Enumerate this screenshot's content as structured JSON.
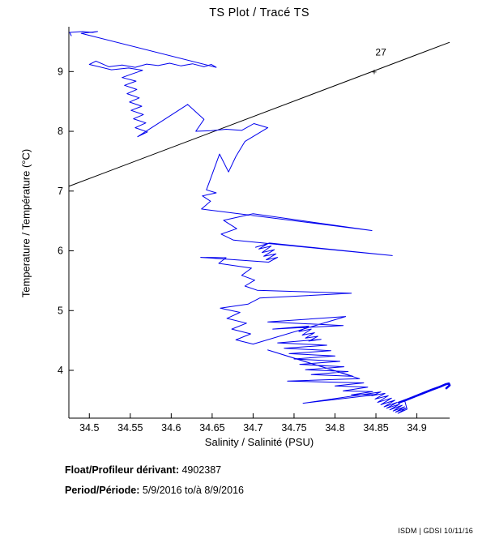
{
  "figure": {
    "title": "TS Plot / Tracé TS",
    "footer": {
      "float_label": "Float/Profileur dérivant:",
      "float_value": " 4902387",
      "period_label": "Period/Période:",
      "period_value": " 5/9/2016  to/à  8/9/2016"
    },
    "stamp": "ISDM | GDSI  10/11/16"
  },
  "chart_data": {
    "type": "line",
    "title": "TS Plot / Tracé TS",
    "xlabel": "Salinity / Salinité (PSU)",
    "ylabel": "Temperature / Température (°C)",
    "xlim": [
      34.475,
      34.94
    ],
    "ylim": [
      3.2,
      9.75
    ],
    "grid": false,
    "box": false,
    "xticks": [
      34.5,
      34.55,
      34.6,
      34.65,
      34.7,
      34.75,
      34.8,
      34.85,
      34.9
    ],
    "xtick_labels": [
      "34.5",
      "34.55",
      "34.6",
      "34.65",
      "34.7",
      "34.75",
      "34.8",
      "34.85",
      "34.9"
    ],
    "yticks": [
      4,
      5,
      6,
      7,
      8,
      9
    ],
    "ytick_labels": [
      "4",
      "5",
      "6",
      "7",
      "8",
      "9"
    ],
    "line_color": "#0000EE",
    "isopycnal": {
      "name": "sigma-t-27-contour",
      "color": "#000000",
      "label": "27",
      "marker": "+",
      "x": [
        34.475,
        34.94
      ],
      "y": [
        7.08,
        9.49
      ],
      "label_pos": [
        34.856,
        9.27
      ],
      "marker_pos": [
        34.848,
        9.0
      ]
    },
    "series": [
      {
        "name": "ts_curve",
        "width": 1,
        "points": [
          [
            34.478,
            9.6
          ],
          [
            34.476,
            9.655
          ],
          [
            34.492,
            9.67
          ],
          [
            34.504,
            9.655
          ],
          [
            34.51,
            9.67
          ],
          [
            34.49,
            9.64
          ],
          [
            34.655,
            9.07
          ],
          [
            34.649,
            9.12
          ],
          [
            34.64,
            9.08
          ],
          [
            34.626,
            9.13
          ],
          [
            34.612,
            9.095
          ],
          [
            34.598,
            9.14
          ],
          [
            34.584,
            9.1
          ],
          [
            34.57,
            9.125
          ],
          [
            34.556,
            9.07
          ],
          [
            34.54,
            9.11
          ],
          [
            34.524,
            9.08
          ],
          [
            34.508,
            9.175
          ],
          [
            34.5,
            9.12
          ],
          [
            34.527,
            9.03
          ],
          [
            34.548,
            9.06
          ],
          [
            34.565,
            9.02
          ],
          [
            34.552,
            8.96
          ],
          [
            34.54,
            8.9
          ],
          [
            34.557,
            8.84
          ],
          [
            34.543,
            8.77
          ],
          [
            34.558,
            8.7
          ],
          [
            34.546,
            8.63
          ],
          [
            34.561,
            8.56
          ],
          [
            34.549,
            8.49
          ],
          [
            34.564,
            8.42
          ],
          [
            34.551,
            8.35
          ],
          [
            34.566,
            8.28
          ],
          [
            34.554,
            8.21
          ],
          [
            34.569,
            8.14
          ],
          [
            34.556,
            8.06
          ],
          [
            34.571,
            7.99
          ],
          [
            34.559,
            7.91
          ],
          [
            34.62,
            8.45
          ],
          [
            34.64,
            8.2
          ],
          [
            34.63,
            8.0
          ],
          [
            34.649,
            8.01
          ],
          [
            34.667,
            8.035
          ],
          [
            34.686,
            8.015
          ],
          [
            34.701,
            8.13
          ],
          [
            34.718,
            8.06
          ],
          [
            34.69,
            7.83
          ],
          [
            34.679,
            7.58
          ],
          [
            34.67,
            7.32
          ],
          [
            34.659,
            7.62
          ],
          [
            34.65,
            7.28
          ],
          [
            34.643,
            7.02
          ],
          [
            34.655,
            6.97
          ],
          [
            34.638,
            6.92
          ],
          [
            34.648,
            6.83
          ],
          [
            34.637,
            6.7
          ],
          [
            34.845,
            6.34
          ],
          [
            34.7,
            6.62
          ],
          [
            34.664,
            6.51
          ],
          [
            34.68,
            6.37
          ],
          [
            34.661,
            6.28
          ],
          [
            34.676,
            6.18
          ],
          [
            34.87,
            5.92
          ],
          [
            34.72,
            6.13
          ],
          [
            34.703,
            6.06
          ],
          [
            34.718,
            6.12
          ],
          [
            34.707,
            6.03
          ],
          [
            34.722,
            6.08
          ],
          [
            34.711,
            5.97
          ],
          [
            34.726,
            6.02
          ],
          [
            34.713,
            5.91
          ],
          [
            34.728,
            5.95
          ],
          [
            34.716,
            5.85
          ],
          [
            34.73,
            5.89
          ],
          [
            34.719,
            5.81
          ],
          [
            34.636,
            5.89
          ],
          [
            34.667,
            5.885
          ],
          [
            34.658,
            5.79
          ],
          [
            34.698,
            5.71
          ],
          [
            34.686,
            5.59
          ],
          [
            34.702,
            5.51
          ],
          [
            34.69,
            5.41
          ],
          [
            34.705,
            5.34
          ],
          [
            34.82,
            5.29
          ],
          [
            34.708,
            5.21
          ],
          [
            34.694,
            5.11
          ],
          [
            34.66,
            5.04
          ],
          [
            34.684,
            4.97
          ],
          [
            34.668,
            4.87
          ],
          [
            34.692,
            4.79
          ],
          [
            34.674,
            4.69
          ],
          [
            34.697,
            4.61
          ],
          [
            34.679,
            4.51
          ],
          [
            34.7,
            4.44
          ],
          [
            34.813,
            4.9
          ],
          [
            34.718,
            4.81
          ],
          [
            34.81,
            4.75
          ],
          [
            34.724,
            4.69
          ],
          [
            34.768,
            4.74
          ],
          [
            34.756,
            4.65
          ],
          [
            34.771,
            4.69
          ],
          [
            34.76,
            4.59
          ],
          [
            34.775,
            4.63
          ],
          [
            34.764,
            4.54
          ],
          [
            34.779,
            4.57
          ],
          [
            34.768,
            4.49
          ],
          [
            34.783,
            4.52
          ],
          [
            34.73,
            4.46
          ],
          [
            34.79,
            4.42
          ],
          [
            34.738,
            4.37
          ],
          [
            34.795,
            4.33
          ],
          [
            34.744,
            4.28
          ],
          [
            34.8,
            4.24
          ],
          [
            34.75,
            4.19
          ],
          [
            34.806,
            4.15
          ],
          [
            34.757,
            4.1
          ],
          [
            34.811,
            4.06
          ],
          [
            34.764,
            4.01
          ],
          [
            34.816,
            3.98
          ],
          [
            34.771,
            3.93
          ],
          [
            34.822,
            3.9
          ],
          [
            34.718,
            4.34
          ],
          [
            34.83,
            3.86
          ],
          [
            34.742,
            3.82
          ],
          [
            34.835,
            3.79
          ],
          [
            34.8,
            3.74
          ],
          [
            34.84,
            3.72
          ],
          [
            34.81,
            3.655
          ],
          [
            34.846,
            3.645
          ],
          [
            34.82,
            3.59
          ],
          [
            34.852,
            3.595
          ],
          [
            34.761,
            3.45
          ],
          [
            34.856,
            3.64
          ],
          [
            34.845,
            3.575
          ],
          [
            34.861,
            3.615
          ],
          [
            34.849,
            3.52
          ],
          [
            34.865,
            3.575
          ],
          [
            34.852,
            3.465
          ],
          [
            34.869,
            3.535
          ],
          [
            34.856,
            3.425
          ],
          [
            34.873,
            3.5
          ],
          [
            34.86,
            3.39
          ],
          [
            34.876,
            3.465
          ],
          [
            34.863,
            3.365
          ],
          [
            34.879,
            3.435
          ],
          [
            34.867,
            3.34
          ],
          [
            34.882,
            3.415
          ],
          [
            34.871,
            3.32
          ],
          [
            34.885,
            3.39
          ],
          [
            34.874,
            3.3
          ],
          [
            34.887,
            3.37
          ],
          [
            34.877,
            3.28
          ],
          [
            34.888,
            3.35
          ],
          [
            34.885,
            3.5
          ]
        ]
      },
      {
        "name": "dense_tail",
        "width": 2.6,
        "points": [
          [
            34.878,
            3.46
          ],
          [
            34.888,
            3.51
          ],
          [
            34.898,
            3.565
          ],
          [
            34.908,
            3.62
          ],
          [
            34.918,
            3.675
          ],
          [
            34.928,
            3.725
          ],
          [
            34.935,
            3.765
          ],
          [
            34.939,
            3.78
          ],
          [
            34.94,
            3.75
          ],
          [
            34.936,
            3.7
          ]
        ]
      }
    ]
  }
}
